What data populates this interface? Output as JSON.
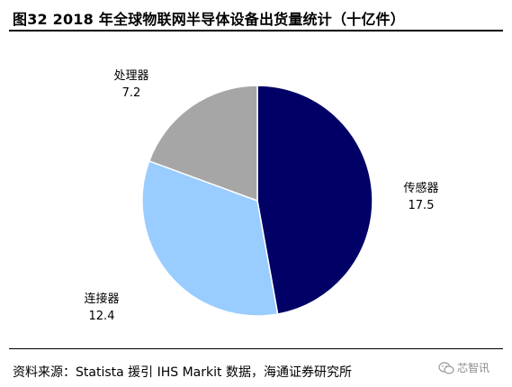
{
  "title": "图32 2018 年全球物联网半导体设备出货量统计（十亿件）",
  "source": "资料来源：Statista 援引 IHS Markit 数据，海通证券研究所",
  "watermark": "芯智讯",
  "chart_data": {
    "type": "pie",
    "title": "图32 2018 年全球物联网半导体设备出货量统计（十亿件）",
    "unit": "十亿件",
    "start_angle_deg": 0,
    "direction": "clockwise",
    "slices": [
      {
        "name": "传感器",
        "value": 17.5,
        "value_label": "17.5",
        "color": "#000066"
      },
      {
        "name": "连接器",
        "value": 12.4,
        "value_label": "12.4",
        "color": "#99CCFF"
      },
      {
        "name": "处理器",
        "value": 7.2,
        "value_label": "7.2",
        "color": "#A6A6A6"
      }
    ]
  }
}
